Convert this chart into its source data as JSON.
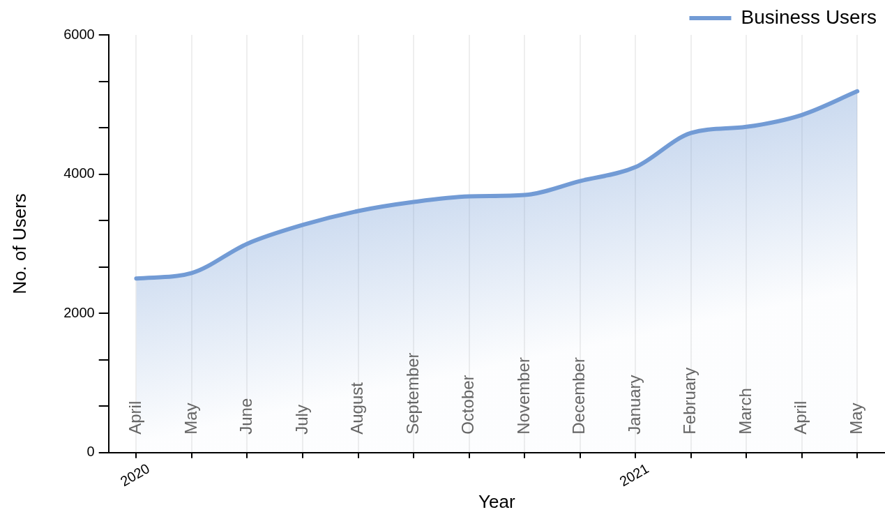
{
  "chart_data": {
    "type": "area",
    "xlabel": "Year",
    "ylabel": "No. of Users",
    "categories": [
      "April",
      "May",
      "June",
      "July",
      "August",
      "September",
      "October",
      "November",
      "December",
      "January",
      "February",
      "March",
      "April",
      "May"
    ],
    "series": [
      {
        "name": "Business Users",
        "color": "#729bd5",
        "values": [
          2500,
          2580,
          3000,
          3270,
          3470,
          3600,
          3680,
          3700,
          3900,
          4100,
          4590,
          4680,
          4850,
          5190
        ]
      }
    ],
    "ylim": [
      0,
      6000
    ],
    "yticks": [
      0,
      {
        "value": 666.67,
        "label": null
      },
      {
        "value": 1333.33,
        "label": null
      },
      2000,
      {
        "value": 2666.67,
        "label": null
      },
      {
        "value": 3333.33,
        "label": null
      },
      4000,
      {
        "value": 4666.67,
        "label": null
      },
      {
        "value": 5333.33,
        "label": null
      },
      6000
    ],
    "annotations": [
      "2020",
      "2021"
    ],
    "grid": "x",
    "legend": "top right",
    "marker": "none",
    "line_style": "solid"
  }
}
